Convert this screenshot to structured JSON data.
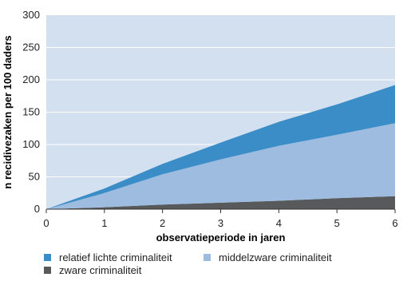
{
  "chart_data": {
    "type": "area",
    "stacked": true,
    "x": [
      0,
      1,
      2,
      3,
      4,
      5,
      6
    ],
    "xlabel": "observatieperiode in jaren",
    "ylabel": "n recidivezaken per 100 daders",
    "xlim": [
      0,
      6
    ],
    "ylim": [
      0,
      300
    ],
    "xticks": [
      "0",
      "1",
      "2",
      "3",
      "4",
      "5",
      "6"
    ],
    "yticks": [
      "0",
      "50",
      "100",
      "150",
      "200",
      "250",
      "300"
    ],
    "grid": true,
    "legend_position": "bottom",
    "background": "#d3e0f0",
    "series": [
      {
        "name": "zware criminaliteit",
        "values": [
          0,
          3,
          7,
          10,
          13,
          17,
          20
        ],
        "color": "#58595b"
      },
      {
        "name": "middelzware criminaliteit",
        "values": [
          0,
          22,
          47,
          67,
          85,
          98,
          113
        ],
        "color": "#9dbce0"
      },
      {
        "name": "relatief lichte criminaliteit",
        "values": [
          0,
          7,
          16,
          26,
          37,
          47,
          59
        ],
        "color": "#3a8dc6"
      }
    ]
  },
  "legend": {
    "items": [
      {
        "label": "relatief lichte criminaliteit",
        "color": "#3a8dc6"
      },
      {
        "label": "middelzware criminaliteit",
        "color": "#9dbce0"
      },
      {
        "label": "zware criminaliteit",
        "color": "#58595b"
      }
    ]
  }
}
